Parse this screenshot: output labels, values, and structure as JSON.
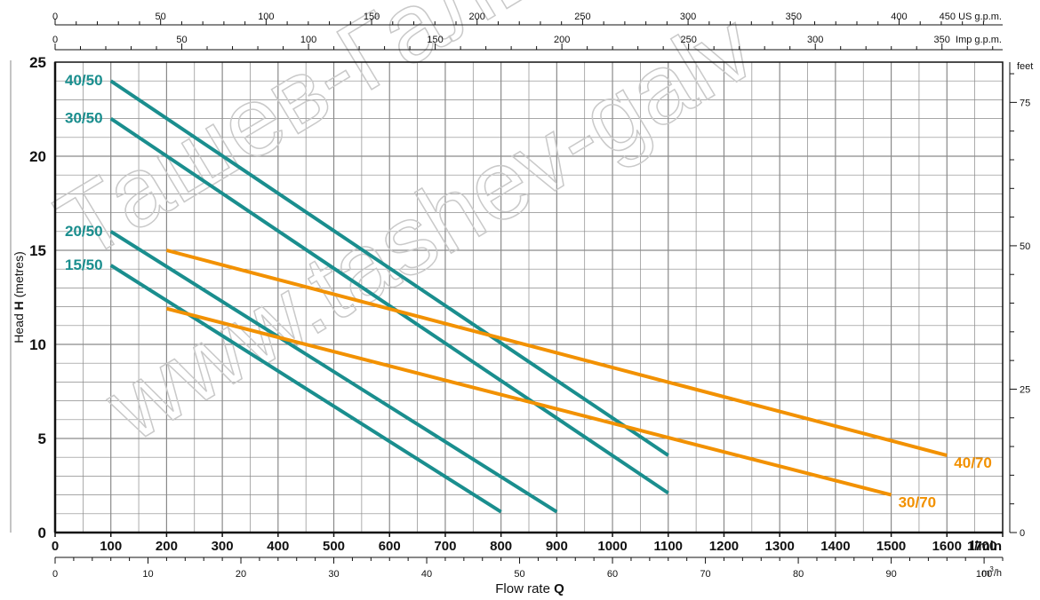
{
  "chart_data": {
    "type": "line",
    "x_unit": "l/min",
    "xlim": [
      0,
      1700
    ],
    "x_ticks": [
      0,
      100,
      200,
      300,
      400,
      500,
      600,
      700,
      800,
      900,
      1000,
      1100,
      1200,
      1300,
      1400,
      1500,
      1600,
      1700
    ],
    "ylabel_prefix": "Head ",
    "ylabel_bold": "H",
    "ylabel_suffix": " (metres)",
    "ylim": [
      0,
      25
    ],
    "y_ticks": [
      0,
      5,
      10,
      15,
      20,
      25
    ],
    "xlabel_prefix": "Flow rate ",
    "xlabel_bold": "Q",
    "grid": true,
    "series": [
      {
        "name": "40/50",
        "color": "#1a8e8e",
        "x": [
          100,
          1100
        ],
        "y": [
          24.0,
          4.1
        ]
      },
      {
        "name": "30/50",
        "color": "#1a8e8e",
        "x": [
          100,
          1100
        ],
        "y": [
          22.0,
          2.1
        ]
      },
      {
        "name": "20/50",
        "color": "#1a8e8e",
        "x": [
          100,
          900
        ],
        "y": [
          16.0,
          1.1
        ]
      },
      {
        "name": "15/50",
        "color": "#1a8e8e",
        "x": [
          100,
          800
        ],
        "y": [
          14.2,
          1.1
        ]
      },
      {
        "name": "40/70",
        "color": "#f29100",
        "x": [
          200,
          1600
        ],
        "y": [
          15.0,
          4.1
        ]
      },
      {
        "name": "30/70",
        "color": "#f29100",
        "x": [
          200,
          1500
        ],
        "y": [
          11.9,
          2.0
        ]
      }
    ],
    "secondary_axes": {
      "us_gpm": {
        "label": "US g.p.m.",
        "ticks": [
          0,
          50,
          100,
          150,
          200,
          250,
          300,
          350,
          400,
          450
        ]
      },
      "imp_gpm": {
        "label": "Imp g.p.m.",
        "ticks": [
          0,
          50,
          100,
          150,
          200,
          250,
          300,
          350
        ]
      },
      "m3h": {
        "label_base": "m",
        "label_sup": "3",
        "label_rest": "/h",
        "ticks": [
          0,
          10,
          20,
          30,
          40,
          50,
          60,
          70,
          80,
          90,
          100
        ]
      },
      "feet": {
        "label": "feet",
        "ticks": [
          0,
          25,
          50,
          75
        ]
      }
    }
  },
  "watermark": {
    "line1": "Ташев-Галв",
    "line2": "www.tashev-galv"
  },
  "colors": {
    "teal": "#1a8e8e",
    "orange": "#f29100",
    "grid": "#8a8a8a",
    "axis": "#111111"
  }
}
